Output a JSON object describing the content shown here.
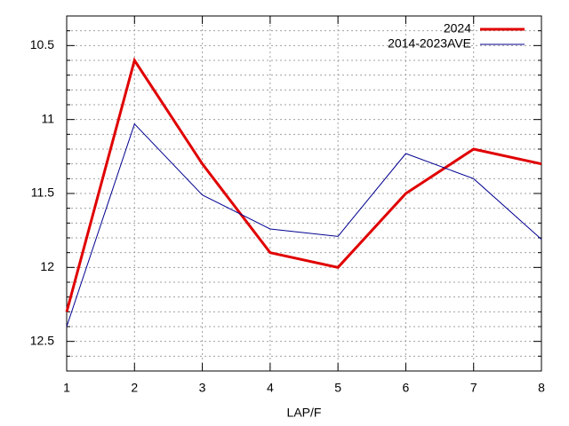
{
  "chart_data": {
    "type": "line",
    "xlabel": "LAP/F",
    "x": [
      1,
      2,
      3,
      4,
      5,
      6,
      7,
      8
    ],
    "series": [
      {
        "name": "2024",
        "color": "#e00000",
        "values": [
          12.3,
          10.6,
          11.3,
          11.9,
          12.0,
          11.5,
          11.2,
          11.3
        ]
      },
      {
        "name": "2014-2023AVE",
        "color": "#000090",
        "values": [
          12.4,
          11.03,
          11.51,
          11.74,
          11.79,
          11.23,
          11.4,
          11.81
        ]
      }
    ],
    "xlim": [
      1,
      8
    ],
    "xticks": [
      1,
      2,
      3,
      4,
      5,
      6,
      7,
      8
    ],
    "ylim": [
      10.3,
      12.7
    ],
    "y_reversed": true,
    "yticks": [
      10.5,
      11,
      11.5,
      12,
      12.5
    ],
    "y_minor_ticks": [
      10.4,
      10.6,
      10.7,
      10.8,
      10.9,
      11.1,
      11.2,
      11.3,
      11.4,
      11.6,
      11.7,
      11.8,
      11.9,
      12.1,
      12.2,
      12.3,
      12.4,
      12.6
    ],
    "grid": true,
    "legend": "top-right"
  }
}
